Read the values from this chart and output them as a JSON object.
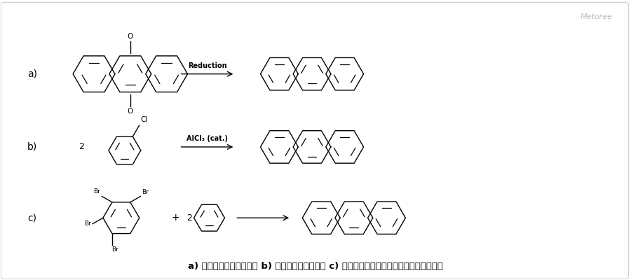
{
  "background_color": "#ffffff",
  "border_color": "#cccccc",
  "watermark": "Metoree",
  "watermark_color": "#bbbbbb",
  "caption": "a) アントラキノンの還元 b) 塩化ベンジルの縮合 c) テトラブロモベンゼンとベンゼンの縮合",
  "caption_fontsize": 9.5,
  "label_a": "a)",
  "label_b": "b)",
  "label_c": "c)",
  "arrow_a_label": "Reduction",
  "arrow_b_label": "AlCl₃ (cat.)"
}
